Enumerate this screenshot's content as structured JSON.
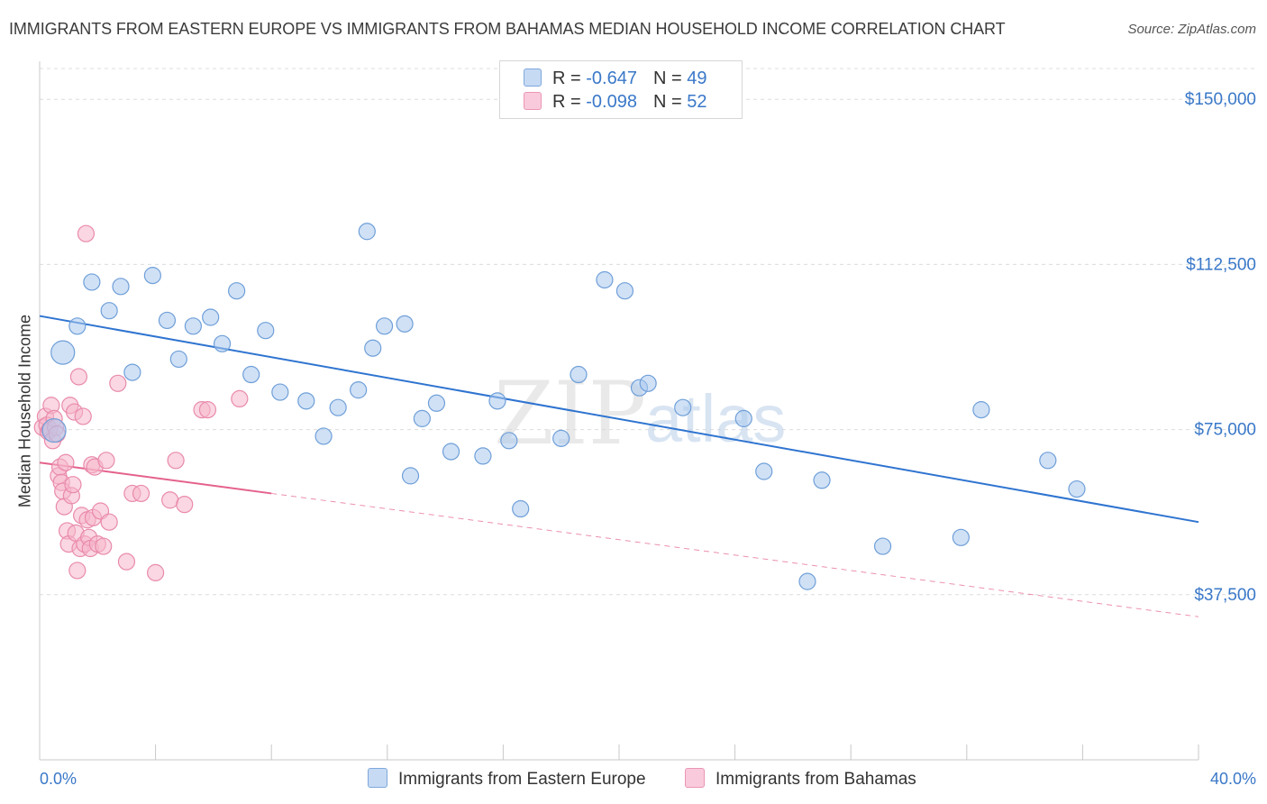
{
  "title": "IMMIGRANTS FROM EASTERN EUROPE VS IMMIGRANTS FROM BAHAMAS MEDIAN HOUSEHOLD INCOME CORRELATION CHART",
  "source": "Source: ZipAtlas.com",
  "watermark": {
    "zip": "ZIP",
    "atlas": "atlas"
  },
  "colors": {
    "blue_fill": "#a9c8ef",
    "blue_stroke": "#6f9fd8",
    "blue_line": "#2f74d0",
    "pink_fill": "#f5b6ca",
    "pink_stroke": "#e98aab",
    "pink_line": "#e4628c",
    "axis_text": "#3a78c8"
  },
  "legend": {
    "rows": [
      {
        "r_label": "R = ",
        "r_value": "-0.647",
        "n_label": "N = ",
        "n_value": "49"
      },
      {
        "r_label": "R = ",
        "r_value": "-0.098",
        "n_label": "N = ",
        "n_value": "52"
      }
    ]
  },
  "chart_data": {
    "type": "scatter",
    "title": "IMMIGRANTS FROM EASTERN EUROPE VS IMMIGRANTS FROM BAHAMAS MEDIAN HOUSEHOLD INCOME CORRELATION CHART",
    "xlabel": "",
    "ylabel": "Median Household Income",
    "xlim": [
      0,
      40
    ],
    "ylim": [
      0,
      157000
    ],
    "x_tick_labels": {
      "min": "0.0%",
      "max": "40.0%"
    },
    "y_ticks": [
      {
        "value": 37500,
        "label": "$37,500"
      },
      {
        "value": 75000,
        "label": "$75,000"
      },
      {
        "value": 112500,
        "label": "$112,500"
      },
      {
        "value": 150000,
        "label": "$150,000"
      }
    ],
    "grid": true,
    "legend_position": "top-center",
    "series": [
      {
        "name": "Immigrants from Eastern Europe",
        "color": "blue",
        "r": -0.647,
        "n": 49,
        "trend": {
          "x0": 0,
          "y0": 100800,
          "x1": 40,
          "y1": 54000,
          "dashed_to": 40
        },
        "points": [
          [
            0.5,
            74800,
            "big"
          ],
          [
            0.8,
            92500,
            "big"
          ],
          [
            1.3,
            98500
          ],
          [
            1.8,
            108500
          ],
          [
            2.4,
            102000
          ],
          [
            2.8,
            107500
          ],
          [
            3.2,
            88000
          ],
          [
            3.9,
            110000
          ],
          [
            4.4,
            99800
          ],
          [
            4.8,
            91000
          ],
          [
            5.3,
            98500
          ],
          [
            5.9,
            100500
          ],
          [
            6.3,
            94500
          ],
          [
            6.8,
            106500
          ],
          [
            7.3,
            87500
          ],
          [
            7.8,
            97500
          ],
          [
            8.3,
            83500
          ],
          [
            9.2,
            81500
          ],
          [
            9.8,
            73500
          ],
          [
            10.3,
            80000
          ],
          [
            11.0,
            84000
          ],
          [
            11.3,
            120000
          ],
          [
            11.5,
            93500
          ],
          [
            11.9,
            98500
          ],
          [
            12.6,
            99000
          ],
          [
            12.8,
            64500
          ],
          [
            13.2,
            77500
          ],
          [
            13.7,
            81000
          ],
          [
            14.2,
            70000
          ],
          [
            15.3,
            69000
          ],
          [
            15.8,
            81500
          ],
          [
            16.2,
            72500
          ],
          [
            16.6,
            57000
          ],
          [
            18.0,
            73000
          ],
          [
            18.6,
            87500
          ],
          [
            19.5,
            109000
          ],
          [
            20.2,
            106500
          ],
          [
            20.7,
            84500
          ],
          [
            21.0,
            85500
          ],
          [
            22.2,
            80000
          ],
          [
            24.3,
            77500
          ],
          [
            25.0,
            65500
          ],
          [
            27.0,
            63500
          ],
          [
            29.1,
            48500
          ],
          [
            26.5,
            40500
          ],
          [
            31.8,
            50500
          ],
          [
            32.5,
            79500
          ],
          [
            34.8,
            68000
          ],
          [
            35.8,
            61500
          ]
        ]
      },
      {
        "name": "Immigrants from Bahamas",
        "color": "pink",
        "r": -0.098,
        "n": 52,
        "trend": {
          "x0": 0,
          "y0": 67500,
          "x1": 8,
          "y1": 60500,
          "dashed_to": 40,
          "y_at_dashed_end": 32500
        },
        "points": [
          [
            0.1,
            75500
          ],
          [
            0.2,
            78000
          ],
          [
            0.25,
            76000
          ],
          [
            0.3,
            74500
          ],
          [
            0.35,
            75000
          ],
          [
            0.4,
            80500
          ],
          [
            0.45,
            72500
          ],
          [
            0.5,
            77500
          ],
          [
            0.55,
            75500
          ],
          [
            0.6,
            74000
          ],
          [
            0.65,
            64500
          ],
          [
            0.7,
            66500
          ],
          [
            0.75,
            63000
          ],
          [
            0.8,
            61000
          ],
          [
            0.85,
            57500
          ],
          [
            0.9,
            67500
          ],
          [
            0.95,
            52000
          ],
          [
            1.0,
            49000
          ],
          [
            1.05,
            80500
          ],
          [
            1.1,
            60000
          ],
          [
            1.15,
            62500
          ],
          [
            1.2,
            79000
          ],
          [
            1.25,
            51500
          ],
          [
            1.3,
            43000
          ],
          [
            1.35,
            87000
          ],
          [
            1.4,
            48000
          ],
          [
            1.45,
            55500
          ],
          [
            1.5,
            78000
          ],
          [
            1.55,
            49000
          ],
          [
            1.6,
            119500
          ],
          [
            1.65,
            54500
          ],
          [
            1.7,
            50500
          ],
          [
            1.75,
            48000
          ],
          [
            1.8,
            67000
          ],
          [
            1.85,
            55000
          ],
          [
            1.9,
            66500
          ],
          [
            2.0,
            49000
          ],
          [
            2.1,
            56500
          ],
          [
            2.2,
            48500
          ],
          [
            2.3,
            68000
          ],
          [
            2.4,
            54000
          ],
          [
            2.7,
            85500
          ],
          [
            3.0,
            45000
          ],
          [
            3.2,
            60500
          ],
          [
            3.5,
            60500
          ],
          [
            4.0,
            42500
          ],
          [
            4.5,
            59000
          ],
          [
            4.7,
            68000
          ],
          [
            5.0,
            58000
          ],
          [
            5.6,
            79500
          ],
          [
            5.8,
            79500
          ],
          [
            6.9,
            82000
          ]
        ]
      }
    ]
  }
}
